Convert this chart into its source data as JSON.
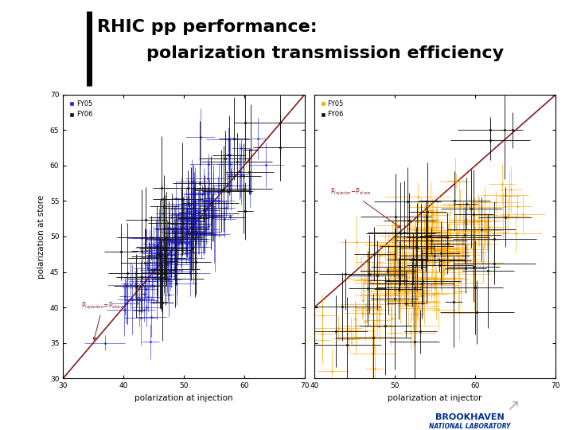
{
  "title_line1": "RHIC pp performance:",
  "title_line2": "        polarization transmission efficiency",
  "title_fontsize": 16,
  "background_color": "#ffffff",
  "left_plot": {
    "xlabel": "polarization at injection",
    "ylabel": "polarization at store",
    "xlim": [
      30,
      70
    ],
    "ylim": [
      30,
      70
    ],
    "xticks": [
      30,
      40,
      50,
      60,
      70
    ],
    "yticks": [
      30,
      35,
      40,
      45,
      50,
      55,
      60,
      65,
      70
    ],
    "legend_fy05": "FY05",
    "legend_fy06": "FY06",
    "color_fy05": "#2222cc",
    "color_fy06": "#111111",
    "diag_color": "#8b1a1a"
  },
  "right_plot": {
    "xlabel": "polarization at injector",
    "ylabel": "",
    "xlim": [
      40,
      70
    ],
    "ylim": [
      30,
      70
    ],
    "xticks": [
      40,
      50,
      60,
      70
    ],
    "yticks": [
      30,
      35,
      40,
      45,
      50,
      55,
      60,
      65,
      70
    ],
    "legend_fy05": "FY05",
    "legend_fy06": "FY06",
    "color_fy05": "#ffa500",
    "color_fy06": "#111111",
    "diag_color": "#8b1a1a"
  }
}
